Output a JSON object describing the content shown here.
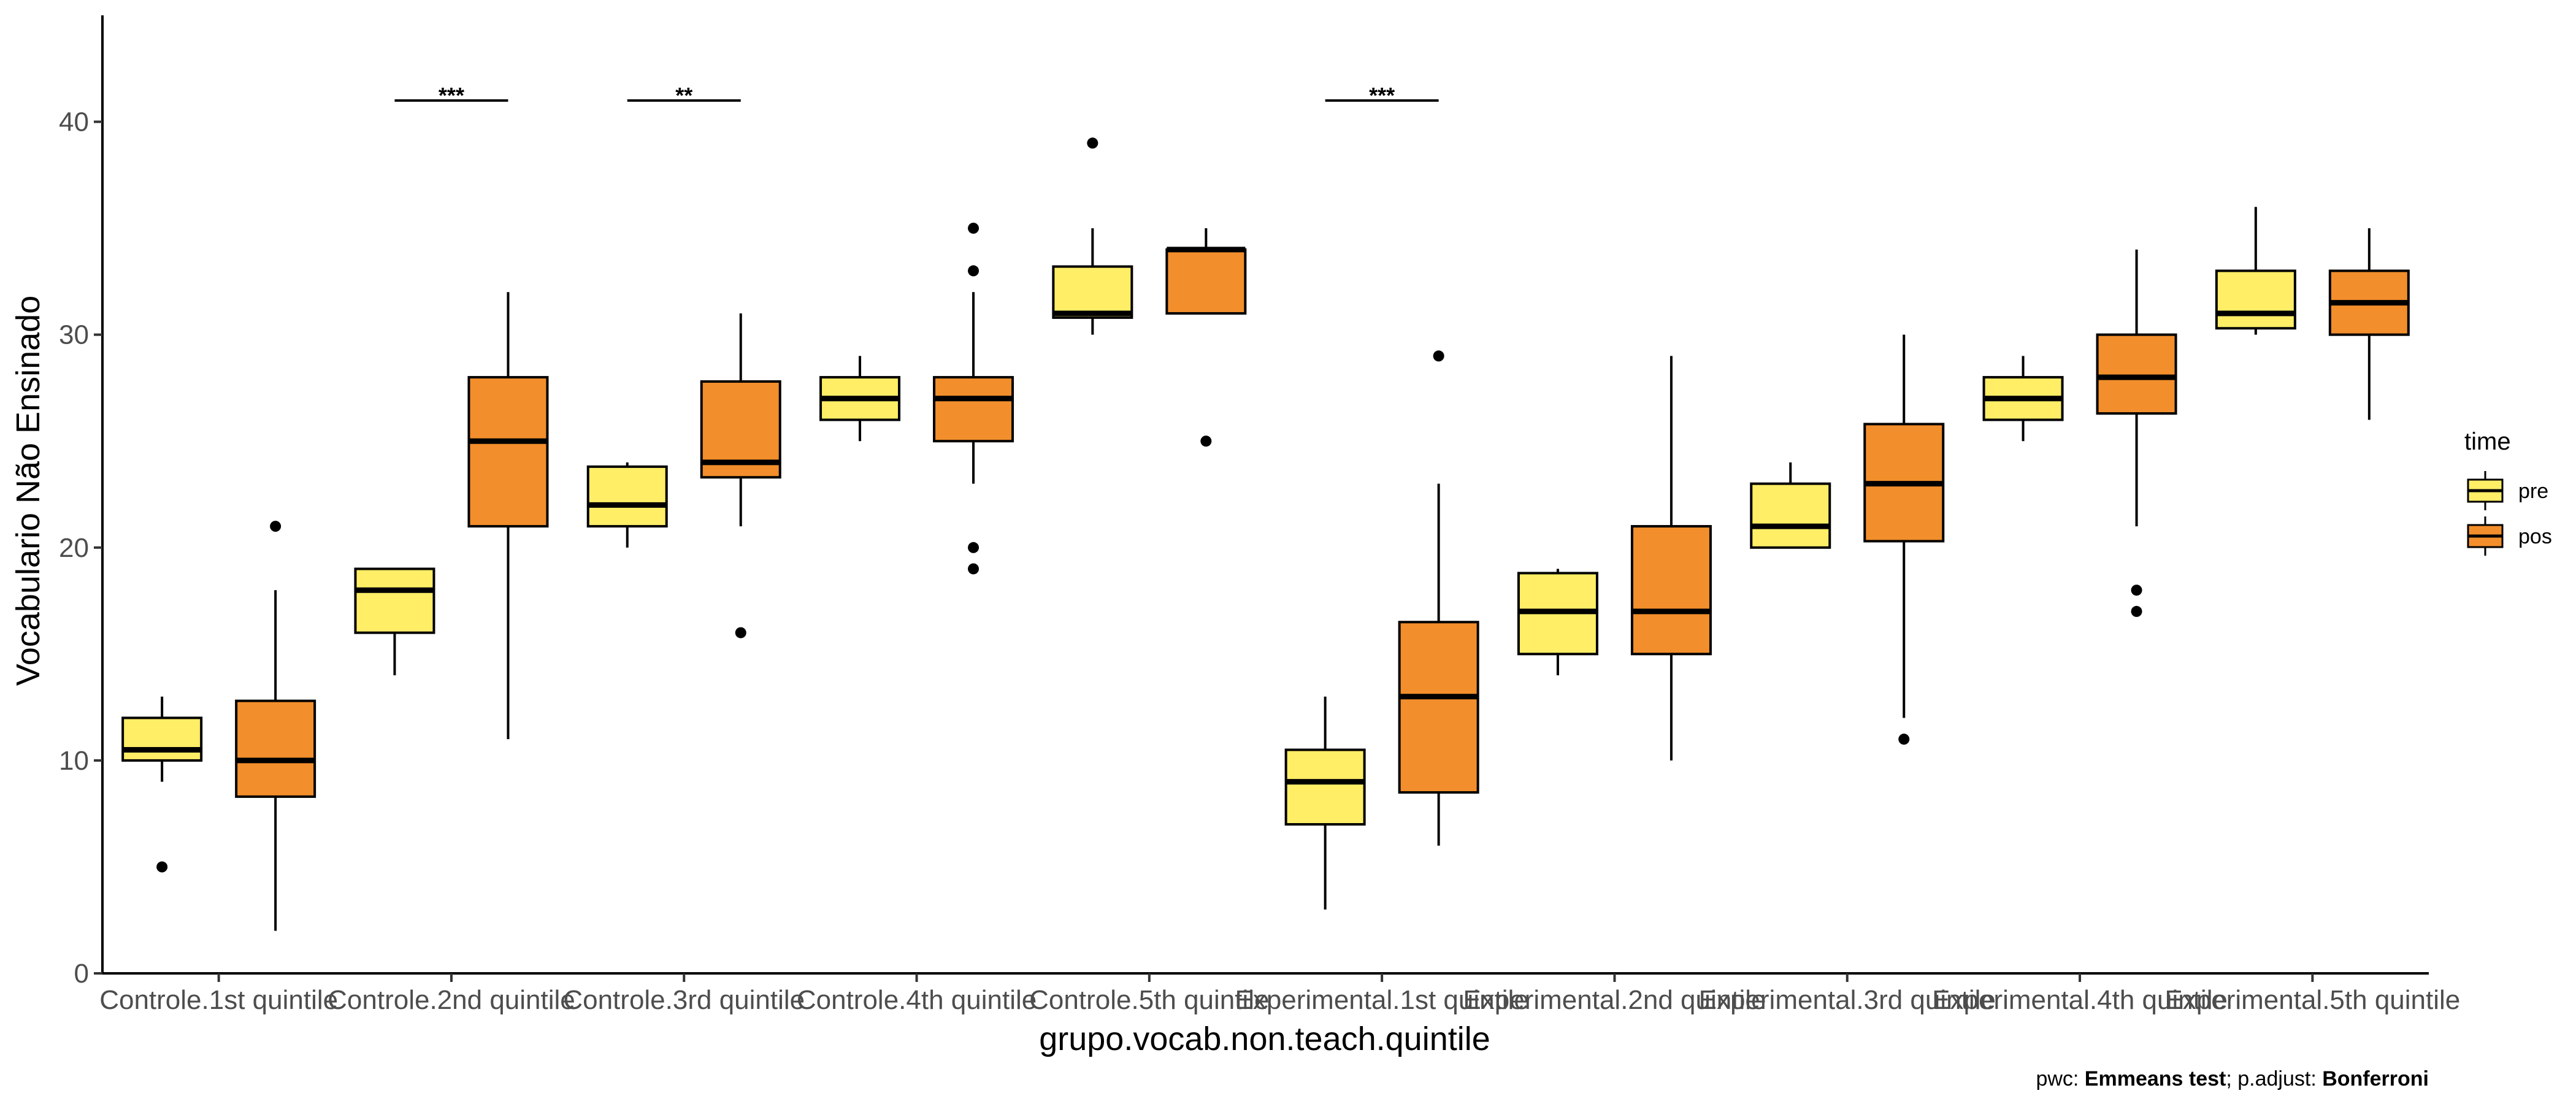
{
  "chart_data": {
    "type": "box",
    "xlabel": "grupo.vocab.non.teach.quintile",
    "ylabel": "Vocabulario Não Ensinado",
    "ylim": [
      0,
      45
    ],
    "yticks": [
      0,
      10,
      20,
      30,
      40
    ],
    "grid": false,
    "categories": [
      "Controle.1st quintile",
      "Controle.2nd quintile",
      "Controle.3rd quintile",
      "Controle.4th quintile",
      "Controle.5th quintile",
      "Experimental.1st quintile",
      "Experimental.2nd quintile",
      "Experimental.3rd quintile",
      "Experimental.4th quintile",
      "Experimental.5th quintile"
    ],
    "legend": {
      "title": "time",
      "placement": "right",
      "entries": [
        {
          "name": "pre",
          "color": "#FFEE66"
        },
        {
          "name": "pos",
          "color": "#F28E2B"
        }
      ]
    },
    "series": [
      {
        "name": "pre",
        "color": "#FFEE66",
        "boxes": [
          {
            "lw": 9,
            "q1": 10,
            "med": 10.5,
            "q3": 12,
            "uw": 13,
            "outliers": [
              5
            ]
          },
          {
            "lw": 14,
            "q1": 16,
            "med": 18,
            "q3": 19,
            "uw": 19,
            "outliers": []
          },
          {
            "lw": 20,
            "q1": 21,
            "med": 22,
            "q3": 23.8,
            "uw": 24,
            "outliers": []
          },
          {
            "lw": 25,
            "q1": 26,
            "med": 27,
            "q3": 28,
            "uw": 29,
            "outliers": []
          },
          {
            "lw": 30,
            "q1": 30.8,
            "med": 31,
            "q3": 33.2,
            "uw": 35,
            "outliers": [
              39
            ]
          },
          {
            "lw": 3,
            "q1": 7,
            "med": 9,
            "q3": 10.5,
            "uw": 13,
            "outliers": []
          },
          {
            "lw": 14,
            "q1": 15,
            "med": 17,
            "q3": 18.8,
            "uw": 19,
            "outliers": []
          },
          {
            "lw": 20,
            "q1": 20,
            "med": 21,
            "q3": 23,
            "uw": 24,
            "outliers": []
          },
          {
            "lw": 25,
            "q1": 26,
            "med": 27,
            "q3": 28,
            "uw": 29,
            "outliers": []
          },
          {
            "lw": 30,
            "q1": 30.3,
            "med": 31,
            "q3": 33,
            "uw": 36,
            "outliers": []
          }
        ]
      },
      {
        "name": "pos",
        "color": "#F28E2B",
        "boxes": [
          {
            "lw": 2,
            "q1": 8.3,
            "med": 10,
            "q3": 12.8,
            "uw": 18,
            "outliers": [
              21
            ]
          },
          {
            "lw": 11,
            "q1": 21,
            "med": 25,
            "q3": 28,
            "uw": 32,
            "outliers": []
          },
          {
            "lw": 21,
            "q1": 23.3,
            "med": 24,
            "q3": 27.8,
            "uw": 31,
            "outliers": [
              16
            ]
          },
          {
            "lw": 23,
            "q1": 25,
            "med": 27,
            "q3": 28,
            "uw": 32,
            "outliers": [
              35,
              33,
              20,
              19
            ]
          },
          {
            "lw": 31,
            "q1": 31,
            "med": 34,
            "q3": 34,
            "uw": 35,
            "outliers": [
              25
            ]
          },
          {
            "lw": 6,
            "q1": 8.5,
            "med": 13,
            "q3": 16.5,
            "uw": 23,
            "outliers": [
              29
            ]
          },
          {
            "lw": 10,
            "q1": 15,
            "med": 17,
            "q3": 21,
            "uw": 29,
            "outliers": []
          },
          {
            "lw": 12,
            "q1": 20.3,
            "med": 23,
            "q3": 25.8,
            "uw": 30,
            "outliers": [
              11
            ]
          },
          {
            "lw": 21,
            "q1": 26.3,
            "med": 28,
            "q3": 30,
            "uw": 34,
            "outliers": [
              18,
              17
            ]
          },
          {
            "lw": 26,
            "q1": 30,
            "med": 31.5,
            "q3": 33,
            "uw": 35,
            "outliers": []
          }
        ]
      }
    ],
    "annotations": [
      {
        "category": 1,
        "y": 41,
        "label": "***"
      },
      {
        "category": 2,
        "y": 41,
        "label": "**"
      },
      {
        "category": 5,
        "y": 41,
        "label": "***"
      }
    ],
    "caption_parts": [
      {
        "text": "pwc: ",
        "bold": false
      },
      {
        "text": "Emmeans test",
        "bold": true
      },
      {
        "text": "; p.adjust: ",
        "bold": false
      },
      {
        "text": "Bonferroni",
        "bold": true
      }
    ]
  }
}
